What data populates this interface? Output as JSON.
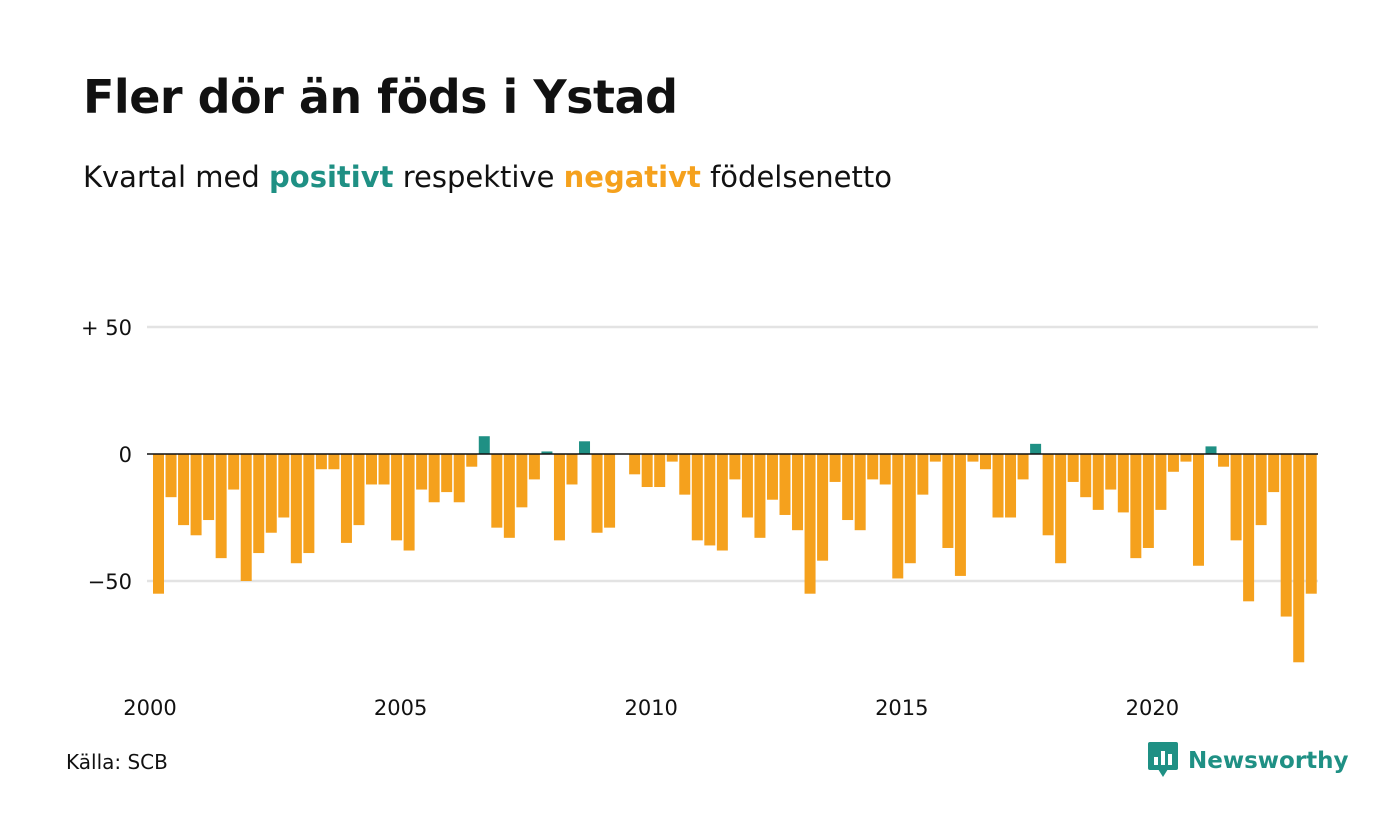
{
  "header": {
    "title": "Fler dör än föds i Ystad",
    "subtitle_pre": "Kvartal med",
    "subtitle_pos": "positivt",
    "subtitle_mid": "respektive",
    "subtitle_neg": "negativt",
    "subtitle_post": "födelsenetto"
  },
  "colors": {
    "positive": "#1f9084",
    "negative": "#f5a11d",
    "grid": "#e3e3e3",
    "zero_line": "#111111"
  },
  "footer": {
    "source": "Källa: SCB",
    "brand_name": "Newsworthy",
    "brand_icon": "bar-chart-speech-bubble-icon"
  },
  "chart_data": {
    "type": "bar",
    "title": "Fler dör än föds i Ystad",
    "subtitle": "Kvartal med positivt respektive negativt födelsenetto",
    "xlabel": "",
    "ylabel": "",
    "x_start": "2000 Q1",
    "x_end": "2023 Q1",
    "y_ticks": [
      {
        "value": 50,
        "label": "+ 50"
      },
      {
        "value": 0,
        "label": "0"
      },
      {
        "value": -50,
        "label": "−50"
      }
    ],
    "x_ticks": [
      {
        "index": 0,
        "label": "2000"
      },
      {
        "index": 20,
        "label": "2005"
      },
      {
        "index": 40,
        "label": "2010"
      },
      {
        "index": 60,
        "label": "2015"
      },
      {
        "index": 80,
        "label": "2020"
      }
    ],
    "ylim": [
      -90,
      50
    ],
    "grid": true,
    "values": [
      -55,
      -17,
      -28,
      -32,
      -26,
      -41,
      -14,
      -50,
      -39,
      -31,
      -25,
      -43,
      -39,
      -6,
      -6,
      -35,
      -28,
      -12,
      -12,
      -34,
      -38,
      -14,
      -19,
      -15,
      -19,
      -5,
      7,
      -29,
      -33,
      -21,
      -10,
      1,
      -34,
      -12,
      5,
      -31,
      -29,
      0,
      -8,
      -13,
      -13,
      -3,
      -16,
      -34,
      -36,
      -38,
      -10,
      -25,
      -33,
      -18,
      -24,
      -30,
      -55,
      -42,
      -11,
      -26,
      -30,
      -10,
      -12,
      -49,
      -43,
      -16,
      -3,
      -37,
      -48,
      -3,
      -6,
      -25,
      -25,
      -10,
      4,
      -32,
      -43,
      -11,
      -17,
      -22,
      -14,
      -23,
      -41,
      -37,
      -22,
      -7,
      -3,
      -44,
      3,
      -5,
      -34,
      -58,
      -28,
      -15,
      -64,
      -82,
      -55
    ]
  }
}
